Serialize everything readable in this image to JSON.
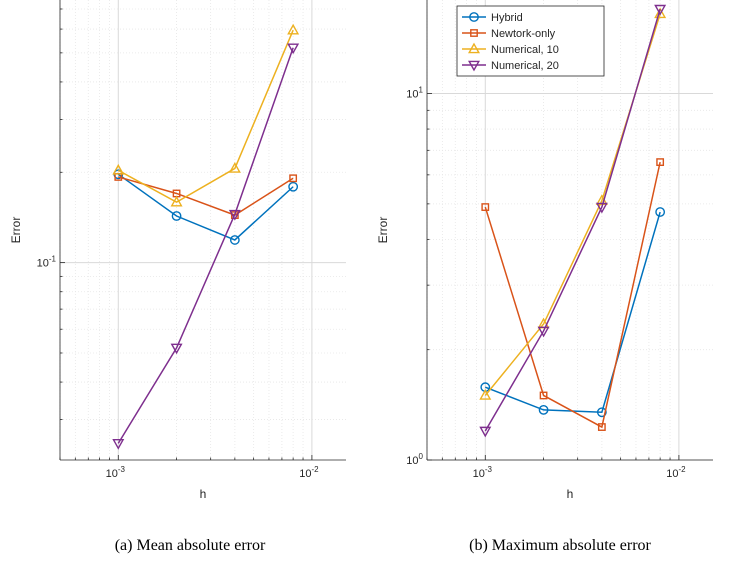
{
  "chart_data": [
    {
      "type": "line",
      "title": "",
      "caption": "(a) Mean absolute error",
      "xlabel": "h",
      "ylabel": "Error",
      "xscale": "log",
      "yscale": "log",
      "xlim": [
        0.0005,
        0.015
      ],
      "ylim": [
        0.022,
        0.75
      ],
      "grid": true,
      "xticks": [
        {
          "value": 0.001,
          "base": "10",
          "exp": "-3"
        },
        {
          "value": 0.01,
          "base": "10",
          "exp": "-2"
        }
      ],
      "yticks": [
        {
          "value": 0.1,
          "base": "10",
          "exp": "-1"
        }
      ],
      "x": [
        0.001,
        0.002,
        0.004,
        0.008
      ],
      "series": [
        {
          "name": "Hybrid",
          "color": "#0072BD",
          "marker": "circle",
          "values": [
            0.197,
            0.143,
            0.119,
            0.179
          ]
        },
        {
          "name": "Newtork-only",
          "color": "#D95319",
          "marker": "square",
          "values": [
            0.193,
            0.17,
            0.144,
            0.191
          ]
        },
        {
          "name": "Numerical, 10",
          "color": "#EDB120",
          "marker": "triangle-up",
          "values": [
            0.203,
            0.159,
            0.206,
            0.595
          ]
        },
        {
          "name": "Numerical, 20",
          "color": "#7E2F8E",
          "marker": "triangle-down",
          "values": [
            0.025,
            0.052,
            0.145,
            0.52
          ]
        }
      ],
      "legend": {
        "show": false
      }
    },
    {
      "type": "line",
      "title": "",
      "caption": "(b) Maximum absolute error",
      "xlabel": "h",
      "ylabel": "Error",
      "xscale": "log",
      "yscale": "log",
      "xlim": [
        0.0005,
        0.015
      ],
      "ylim": [
        1,
        18
      ],
      "grid": true,
      "xticks": [
        {
          "value": 0.001,
          "base": "10",
          "exp": "-3"
        },
        {
          "value": 0.01,
          "base": "10",
          "exp": "-2"
        }
      ],
      "yticks": [
        {
          "value": 1,
          "base": "10",
          "exp": "0"
        },
        {
          "value": 10,
          "base": "10",
          "exp": "1"
        }
      ],
      "x": [
        0.001,
        0.002,
        0.004,
        0.008
      ],
      "series": [
        {
          "name": "Hybrid",
          "color": "#0072BD",
          "marker": "circle",
          "values": [
            1.58,
            1.37,
            1.35,
            4.75
          ]
        },
        {
          "name": "Newtork-only",
          "color": "#D95319",
          "marker": "square",
          "values": [
            4.9,
            1.5,
            1.23,
            6.5
          ]
        },
        {
          "name": "Numerical, 10",
          "color": "#EDB120",
          "marker": "triangle-up",
          "values": [
            1.5,
            2.35,
            5.1,
            16.5
          ]
        },
        {
          "name": "Numerical, 20",
          "color": "#7E2F8E",
          "marker": "triangle-down",
          "values": [
            1.2,
            2.25,
            4.9,
            17.0
          ]
        }
      ],
      "legend": {
        "show": true,
        "position": "top-left"
      }
    }
  ]
}
